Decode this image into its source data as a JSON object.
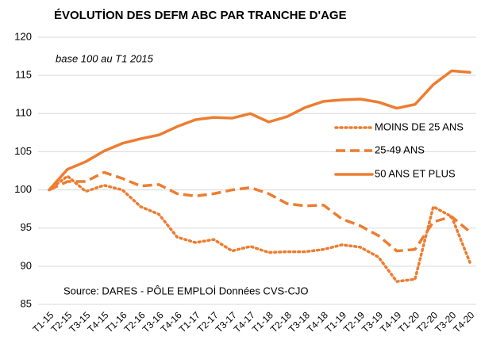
{
  "chart_data": {
    "type": "line",
    "title": "ÉVOLUTİON DES DEFM ABC PAR TRANCHE D'AGE",
    "subtitle": "base 100  au T1 2015",
    "source": "Source: DARES - PÔLE EMPLOİ  Données CVS-CJO",
    "categories": [
      "T1-15",
      "T2-15",
      "T3-15",
      "T4-15",
      "T1-16",
      "T2-16",
      "T3-16",
      "T4-16",
      "T1-17",
      "T2-17",
      "T3-17",
      "T4-17",
      "T1-18",
      "T2-18",
      "T3-18",
      "T4-18",
      "T1-19",
      "T2-19",
      "T3-19",
      "T4-19",
      "T1-20",
      "T2-20",
      "T3-20",
      "T4-20"
    ],
    "series": [
      {
        "name": "MOINS DE 25 ANS",
        "color": "#ED7D31",
        "dash": "dotted",
        "values": [
          100,
          101.8,
          99.8,
          100.6,
          100,
          97.8,
          96.8,
          93.8,
          93.1,
          93.5,
          92,
          92.6,
          91.8,
          91.9,
          91.9,
          92.2,
          92.8,
          92.5,
          91.2,
          88,
          88.3,
          97.8,
          96.5,
          90.5
        ]
      },
      {
        "name": "25-49 ANS",
        "color": "#ED7D31",
        "dash": "dashed",
        "values": [
          100,
          101.1,
          101.1,
          102.3,
          101.5,
          100.5,
          100.7,
          99.5,
          99.2,
          99.5,
          100,
          100.3,
          99.5,
          98.2,
          97.9,
          98,
          96.2,
          95.3,
          94,
          92,
          92.2,
          95.8,
          96.5,
          94.5
        ]
      },
      {
        "name": "50 ANS ET PLUS",
        "color": "#ED7D31",
        "dash": "solid",
        "values": [
          100,
          102.7,
          103.7,
          105.1,
          106.1,
          106.7,
          107.2,
          108.3,
          109.2,
          109.5,
          109.4,
          110,
          108.9,
          109.6,
          110.8,
          111.6,
          111.8,
          111.9,
          111.5,
          110.7,
          111.2,
          113.8,
          115.6,
          115.4
        ]
      }
    ],
    "ylim": [
      85,
      120
    ],
    "yticks": [
      85,
      90,
      95,
      100,
      105,
      110,
      115,
      120
    ],
    "grid": true,
    "legend": "right"
  }
}
